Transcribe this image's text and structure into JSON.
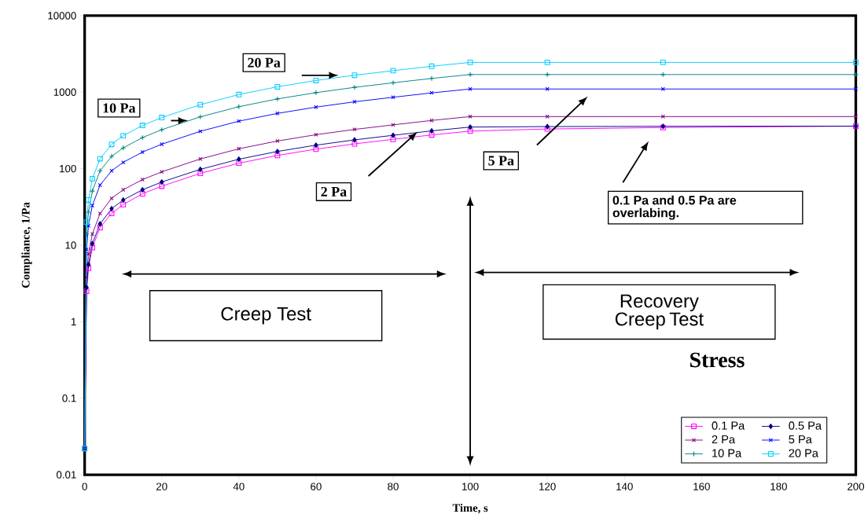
{
  "chart_data": {
    "type": "line",
    "xlabel": "Time, s",
    "ylabel": "Compliance, 1/Pa",
    "legend_title": "Stress",
    "legend": "bottom right",
    "log": "y",
    "grid": false,
    "x": [
      0,
      0.5,
      1,
      2,
      4,
      7,
      10,
      15,
      20,
      30,
      40,
      50,
      60,
      70,
      80,
      90,
      100,
      120,
      150,
      200
    ],
    "xlim": [
      0,
      200
    ],
    "xticks": [
      0,
      20,
      40,
      60,
      80,
      100,
      120,
      140,
      160,
      180,
      200
    ],
    "ylim": [
      0.01,
      10000
    ],
    "yticks": [
      0.01,
      0.1,
      1,
      10,
      100,
      1000,
      10000
    ],
    "series": [
      {
        "name": "0.1 Pa",
        "color": "#ff00ff",
        "marker": "square",
        "values": [
          0.022,
          2.5,
          5,
          9.3,
          17,
          26,
          34,
          47,
          59,
          87,
          118,
          149,
          180,
          211,
          242,
          276,
          310,
          330,
          345,
          360
        ]
      },
      {
        "name": "0.5 Pa",
        "color": "#000080",
        "marker": "diamond",
        "values": [
          0.022,
          2.8,
          5.6,
          10.5,
          19,
          30,
          39,
          53,
          67,
          98,
          133,
          168,
          203,
          238,
          273,
          312,
          350,
          355,
          358,
          360
        ]
      },
      {
        "name": "2 Pa",
        "color": "#800080",
        "marker": "cross",
        "values": [
          0.022,
          3.8,
          7.7,
          14,
          26,
          41,
          53,
          72,
          91,
          134,
          182,
          230,
          278,
          326,
          374,
          427,
          480,
          480,
          480,
          480
        ]
      },
      {
        "name": "5 Pa",
        "color": "#0000ff",
        "marker": "cross",
        "values": [
          0.022,
          8.8,
          18,
          33,
          61,
          94,
          121,
          165,
          209,
          308,
          418,
          528,
          638,
          748,
          858,
          979,
          1100,
          1100,
          1100,
          1100
        ]
      },
      {
        "name": "10 Pa",
        "color": "#008080",
        "marker": "plus",
        "values": [
          0.022,
          14,
          27,
          51,
          94,
          145,
          187,
          255,
          323,
          476,
          646,
          816,
          986,
          1156,
          1326,
          1513,
          1700,
          1700,
          1700,
          1700
        ]
      },
      {
        "name": "20 Pa",
        "color": "#00ccff",
        "marker": "square",
        "values": [
          0.022,
          20,
          39,
          74,
          135,
          208,
          270,
          368,
          466,
          686,
          931,
          1176,
          1421,
          1666,
          1911,
          2181,
          2450,
          2450,
          2450,
          2450
        ]
      }
    ],
    "annotations": [
      "20 Pa",
      "10 Pa",
      "2 Pa",
      "5 Pa",
      "0.1 Pa and 0.5 Pa are overlabing.",
      "Creep Test",
      "Recovery Creep Test"
    ]
  }
}
